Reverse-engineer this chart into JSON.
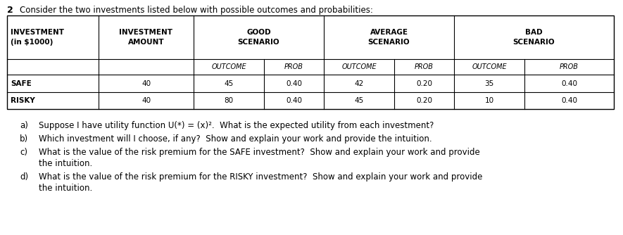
{
  "title_number": "2",
  "title_text": "Consider the two investments listed below with possible outcomes and probabilities:",
  "rows": [
    [
      "SAFE",
      "40",
      "45",
      "0.40",
      "42",
      "0.20",
      "35",
      "0.40"
    ],
    [
      "RISKY",
      "40",
      "80",
      "0.40",
      "45",
      "0.20",
      "10",
      "0.40"
    ]
  ],
  "bg_color": "#ffffff",
  "border_color": "#000000",
  "font_size_table": 7.5,
  "font_size_title": 8.5,
  "font_size_questions": 8.5
}
